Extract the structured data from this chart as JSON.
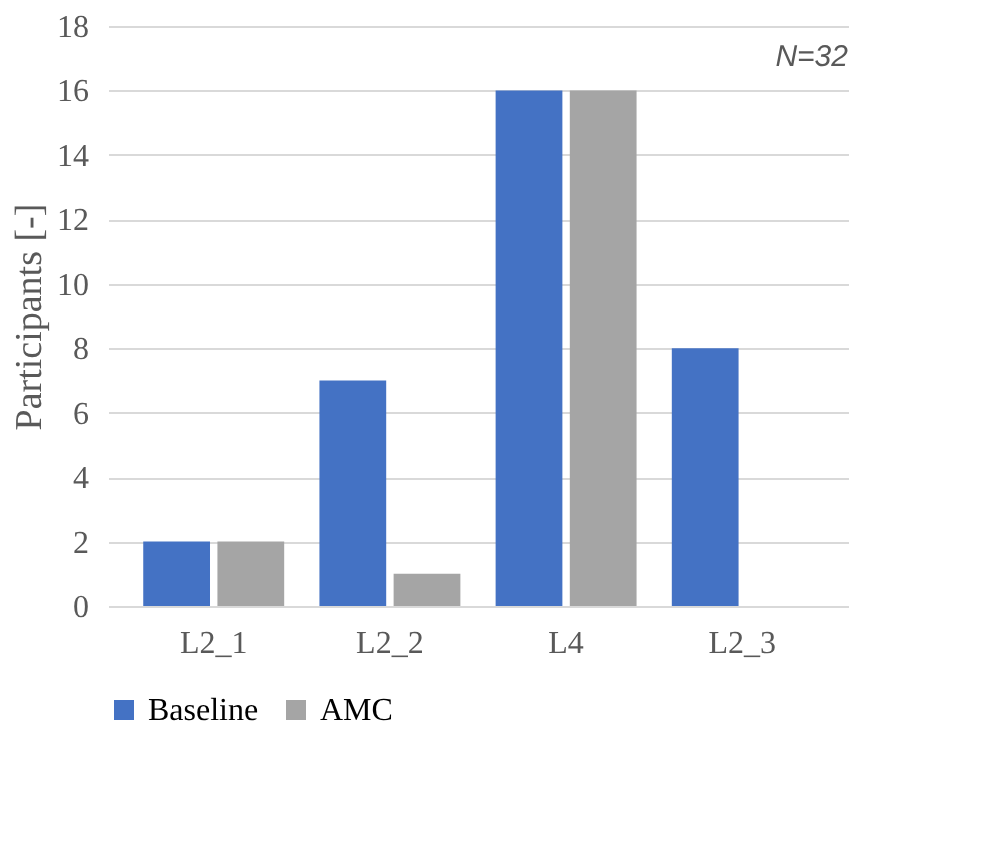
{
  "chart_data": {
    "type": "bar",
    "ylabel": "Participants [-]",
    "categories": [
      "L2_1",
      "L2_2",
      "L4",
      "L2_3"
    ],
    "series": [
      {
        "name": "Baseline",
        "color": "#4472c4",
        "values": [
          2,
          7,
          16,
          8
        ]
      },
      {
        "name": "AMC",
        "color": "#a5a5a5",
        "values": [
          2,
          1,
          16,
          0
        ]
      }
    ],
    "ylim": [
      0,
      18
    ],
    "yticks": [
      0,
      2,
      4,
      6,
      8,
      10,
      12,
      14,
      16,
      18
    ],
    "grid": "y",
    "legend": "bottom",
    "annotations": [
      "N=32"
    ]
  }
}
